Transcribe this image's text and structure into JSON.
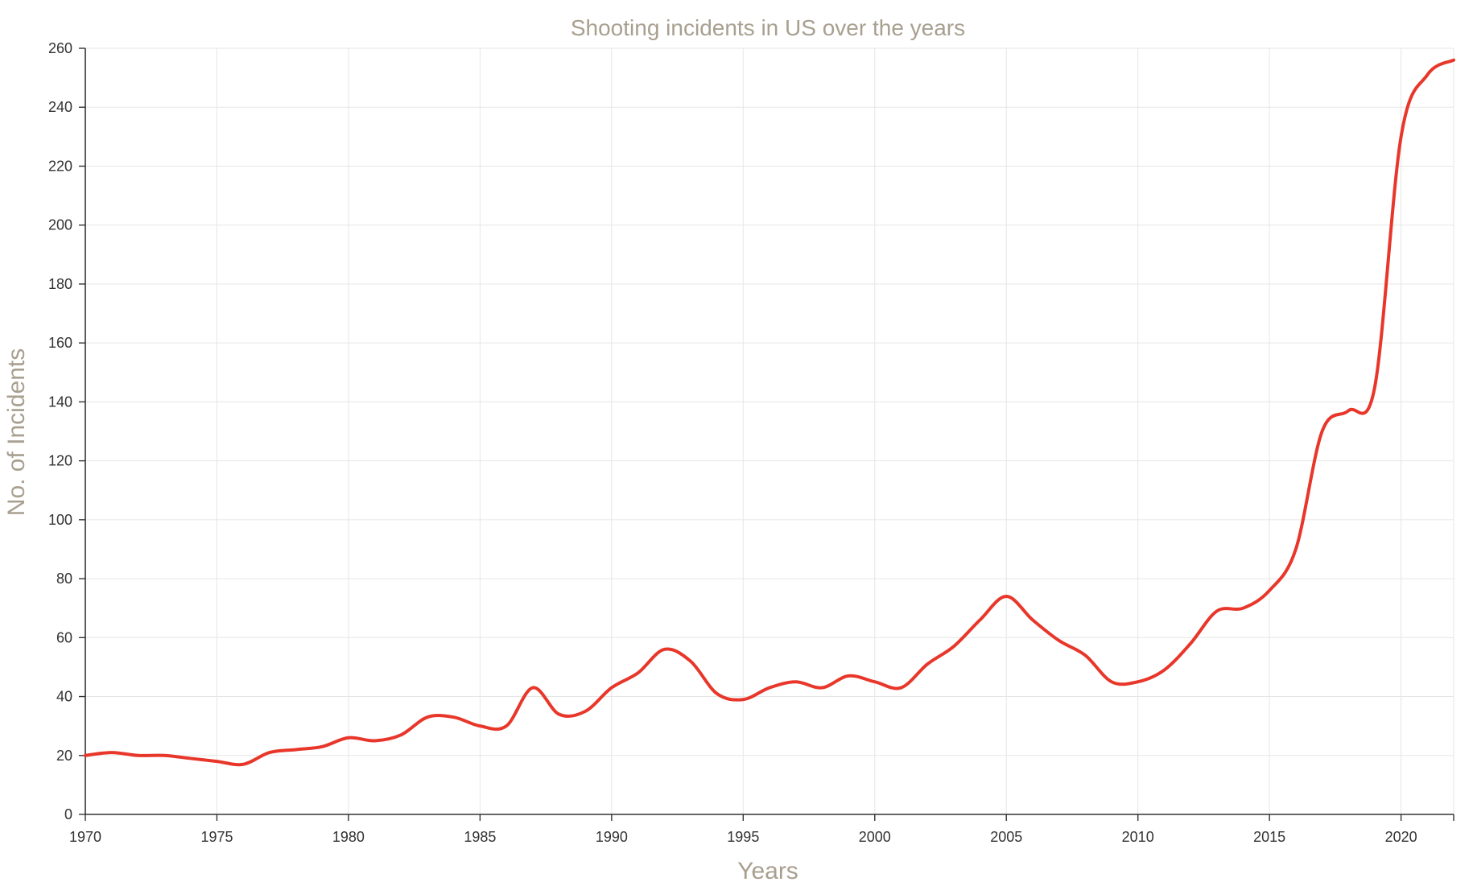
{
  "chart_data": {
    "type": "line",
    "title": "Shooting incidents in US over the years",
    "xlabel": "Years",
    "ylabel": "No. of Incidents",
    "xlim": [
      1970,
      2022
    ],
    "ylim": [
      0,
      260
    ],
    "x_ticks": [
      1970,
      1975,
      1980,
      1985,
      1990,
      1995,
      2000,
      2005,
      2010,
      2015,
      2020
    ],
    "y_ticks": [
      0,
      20,
      40,
      60,
      80,
      100,
      120,
      140,
      160,
      180,
      200,
      220,
      240,
      260
    ],
    "grid": true,
    "legend": "none",
    "line_color": "#e8372a",
    "x": [
      1970,
      1971,
      1972,
      1973,
      1974,
      1975,
      1976,
      1977,
      1978,
      1979,
      1980,
      1981,
      1982,
      1983,
      1984,
      1985,
      1986,
      1987,
      1988,
      1989,
      1990,
      1991,
      1992,
      1993,
      1994,
      1995,
      1996,
      1997,
      1998,
      1999,
      2000,
      2001,
      2002,
      2003,
      2004,
      2005,
      2006,
      2007,
      2008,
      2009,
      2010,
      2011,
      2012,
      2013,
      2014,
      2015,
      2016,
      2017,
      2018,
      2019,
      2020,
      2021,
      2022
    ],
    "series": [
      {
        "values": [
          20,
          21,
          20,
          20,
          19,
          18,
          17,
          21,
          22,
          23,
          26,
          25,
          27,
          33,
          33,
          30,
          30,
          43,
          34,
          35,
          43,
          48,
          56,
          52,
          41,
          39,
          43,
          45,
          43,
          47,
          45,
          43,
          51,
          57,
          66,
          74,
          66,
          59,
          54,
          45,
          45,
          49,
          58,
          69,
          70,
          76,
          90,
          130,
          137,
          145,
          230,
          251,
          256
        ]
      }
    ]
  }
}
